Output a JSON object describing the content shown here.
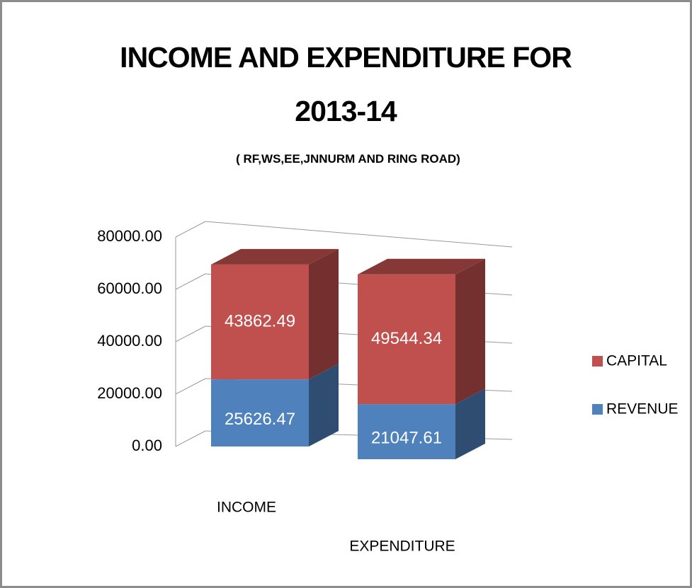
{
  "chart_data": {
    "type": "bar3d_stacked",
    "title": "INCOME AND EXPENDITURE FOR 2013-14",
    "subtitle": "( RF,WS,EE,JNNURM AND RING ROAD)",
    "categories": [
      "INCOME",
      "EXPENDITURE"
    ],
    "series": [
      {
        "name": "REVENUE",
        "color": "#4f81bd",
        "values": [
          25626.47,
          21047.61
        ]
      },
      {
        "name": "CAPITAL",
        "color": "#c0504d",
        "values": [
          43862.49,
          49544.34
        ]
      }
    ],
    "ylim": [
      0,
      80000
    ],
    "yticks": [
      {
        "value": 0,
        "label": "0.00"
      },
      {
        "value": 20000,
        "label": "20000.00"
      },
      {
        "value": 40000,
        "label": "40000.00"
      },
      {
        "value": 60000,
        "label": "60000.00"
      },
      {
        "value": 80000,
        "label": "80000.00"
      }
    ],
    "grid": true,
    "legend": "right"
  }
}
